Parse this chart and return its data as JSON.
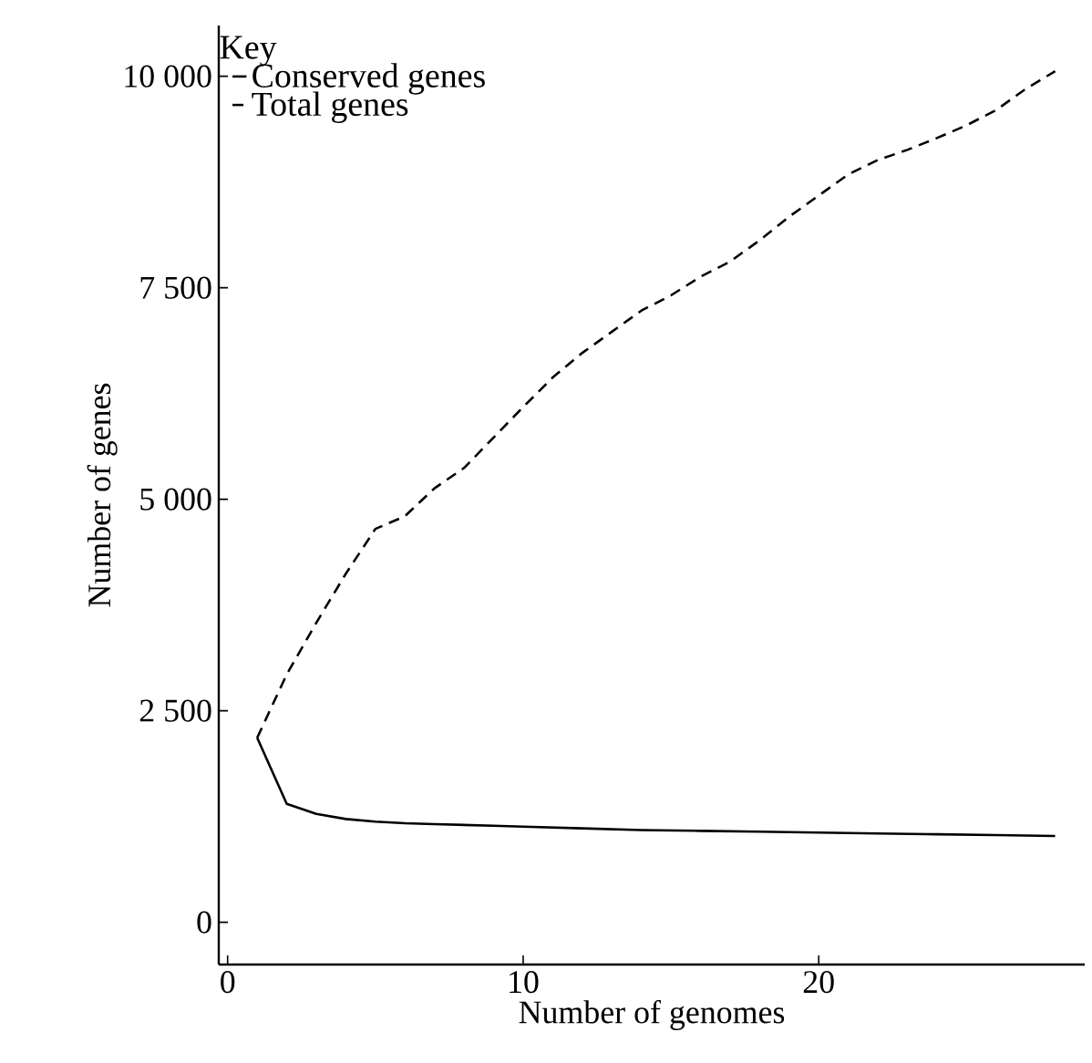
{
  "chart_data": {
    "type": "line",
    "xlabel": "Number of genomes",
    "ylabel": "Number of genes",
    "legend_title": "Key",
    "xlim": [
      -0.3,
      29
    ],
    "xticks": [
      0,
      10,
      20
    ],
    "ylim": [
      -500,
      10600
    ],
    "yticks": [
      0,
      {
        "value": 2500,
        "label": "2 500"
      },
      {
        "value": 5000,
        "label": "5 000"
      },
      {
        "value": 7500,
        "label": "7 500"
      },
      {
        "value": 10000,
        "label": "10 000"
      }
    ],
    "legend": "top left",
    "grid": false,
    "series": [
      {
        "name": "Conserved genes",
        "color": "#000000",
        "line_style": "solid",
        "x": [
          1,
          2,
          3,
          4,
          5,
          6,
          7,
          8,
          9,
          10,
          12,
          14,
          16,
          18,
          20,
          22,
          24,
          26,
          28
        ],
        "values": [
          2180,
          1400,
          1280,
          1220,
          1190,
          1170,
          1160,
          1150,
          1140,
          1130,
          1110,
          1090,
          1080,
          1070,
          1060,
          1050,
          1040,
          1030,
          1020
        ]
      },
      {
        "name": "Total genes",
        "color": "#000000",
        "line_style": "dashed",
        "x": [
          1,
          2,
          3,
          4,
          5,
          6,
          7,
          8,
          9,
          10,
          11,
          12,
          13,
          14,
          15,
          16,
          17,
          18,
          19,
          20,
          21,
          22,
          23,
          24,
          25,
          26,
          27,
          28
        ],
        "values": [
          2180,
          2930,
          3540,
          4120,
          4650,
          4800,
          5130,
          5370,
          5730,
          6090,
          6440,
          6730,
          6980,
          7230,
          7410,
          7630,
          7810,
          8060,
          8340,
          8590,
          8840,
          9010,
          9130,
          9270,
          9420,
          9600,
          9850,
          10060
        ]
      }
    ]
  }
}
